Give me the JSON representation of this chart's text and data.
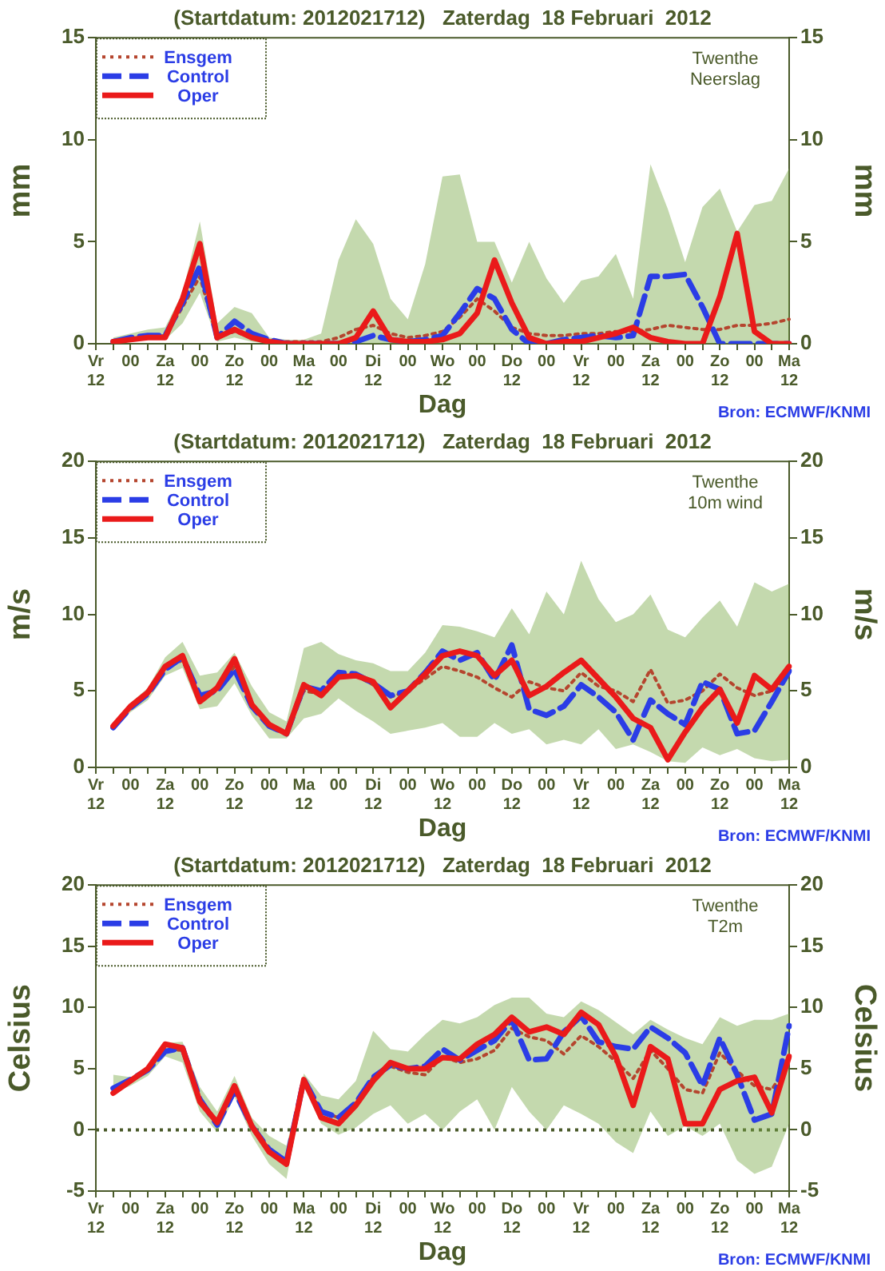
{
  "chart_data": [
    {
      "type": "line",
      "title": "(Startdatum: 2012021712)   Zaterdag  18 Februari  2012",
      "xlabel": "Dag",
      "ylabel": "mm",
      "y2label": "mm",
      "annotations": [
        "Twenthe\nNeerslag",
        "Bron: ECMWF/KNMI"
      ],
      "categories": [
        "Vr\n12",
        null,
        "00",
        null,
        "Za\n12",
        null,
        "00",
        null,
        "Zo\n12",
        null,
        "00",
        null,
        "Ma\n12",
        null,
        "00",
        null,
        "Di\n12",
        null,
        "00",
        null,
        "Wo\n12",
        null,
        "00",
        null,
        "Do\n12",
        null,
        "00",
        null,
        "Vr\n12",
        null,
        "00",
        null,
        "Za\n12",
        null,
        "00",
        null,
        "Zo\n12",
        null,
        "00",
        null,
        "Ma\n12"
      ],
      "ylim": [
        0,
        15
      ],
      "yticks": [
        0,
        5,
        10,
        15
      ],
      "y2lim": [
        0,
        15
      ],
      "y2ticks": [
        0,
        5,
        10,
        15
      ],
      "legend": "top left",
      "series": [
        {
          "name": "Ensgem",
          "color": "#b5452e",
          "line_style": "dotted",
          "values": [
            null,
            0.1,
            0.2,
            0.3,
            0.4,
            1.8,
            3.3,
            0.3,
            0.6,
            0.3,
            0.1,
            0.1,
            0.1,
            0.1,
            0.3,
            0.7,
            0.9,
            0.5,
            0.3,
            0.4,
            0.6,
            1.3,
            2.2,
            1.6,
            0.8,
            0.5,
            0.4,
            0.4,
            0.5,
            0.5,
            0.6,
            0.6,
            0.7,
            0.9,
            0.8,
            0.7,
            0.7,
            0.9,
            0.9,
            1.0,
            1.2
          ],
          "lower": [
            null,
            0.1,
            0.1,
            0.2,
            0.2,
            1.0,
            2.5,
            0.1,
            0.3,
            0.1,
            0,
            0,
            0,
            0,
            0,
            0,
            0,
            0,
            0,
            0,
            0,
            0,
            0,
            0,
            0,
            0,
            0,
            0,
            0,
            0,
            0,
            0,
            0,
            0,
            0,
            0,
            0,
            0,
            0,
            0,
            0
          ],
          "upper": [
            null,
            0.3,
            0.5,
            0.7,
            0.8,
            2.5,
            6.0,
            1.0,
            1.8,
            1.5,
            0.3,
            0.2,
            0.2,
            0.5,
            4.1,
            6.1,
            4.9,
            2.2,
            1.2,
            3.9,
            8.2,
            8.3,
            5.0,
            5.0,
            3.0,
            5.0,
            3.2,
            2.0,
            3.1,
            3.3,
            4.4,
            2.2,
            8.8,
            6.6,
            4.0,
            6.7,
            7.6,
            5.5,
            6.8,
            7.0,
            8.6
          ]
        },
        {
          "name": "Control",
          "color": "#2b3de6",
          "line_style": "dashed",
          "values": [
            null,
            0.1,
            0.3,
            0.4,
            0.4,
            2.0,
            3.8,
            0.3,
            1.1,
            0.5,
            0.2,
            0,
            0,
            0,
            0,
            0.1,
            0.4,
            0.2,
            0.1,
            0.2,
            0.4,
            1.5,
            2.7,
            2.2,
            0.7,
            0,
            0,
            0.2,
            0.3,
            0.4,
            0.3,
            0.4,
            3.3,
            3.3,
            3.4,
            1.8,
            0,
            0,
            0,
            0,
            0
          ]
        },
        {
          "name": "Oper",
          "color": "#ea1a1a",
          "line_style": "solid",
          "values": [
            null,
            0.1,
            0.2,
            0.3,
            0.3,
            2.2,
            4.9,
            0.3,
            0.7,
            0.3,
            0.1,
            0,
            0,
            0,
            0,
            0.3,
            1.6,
            0.2,
            0.1,
            0.1,
            0.2,
            0.5,
            1.5,
            4.1,
            2.0,
            0.3,
            0,
            0.1,
            0.1,
            0.3,
            0.5,
            0.8,
            0.3,
            0.1,
            0,
            0,
            2.3,
            5.4,
            0.6,
            0,
            0
          ]
        }
      ]
    },
    {
      "type": "line",
      "title": "(Startdatum: 2012021712)   Zaterdag  18 Februari  2012",
      "xlabel": "Dag",
      "ylabel": "m/s",
      "y2label": "m/s",
      "annotations": [
        "Twenthe\n10m wind",
        "Bron: ECMWF/KNMI"
      ],
      "categories": [
        "Vr\n12",
        null,
        "00",
        null,
        "Za\n12",
        null,
        "00",
        null,
        "Zo\n12",
        null,
        "00",
        null,
        "Ma\n12",
        null,
        "00",
        null,
        "Di\n12",
        null,
        "00",
        null,
        "Wo\n12",
        null,
        "00",
        null,
        "Do\n12",
        null,
        "00",
        null,
        "Vr\n12",
        null,
        "00",
        null,
        "Za\n12",
        null,
        "00",
        null,
        "Zo\n12",
        null,
        "00",
        null,
        "Ma\n12"
      ],
      "ylim": [
        0,
        20
      ],
      "yticks": [
        0,
        5,
        10,
        15,
        20
      ],
      "y2lim": [
        0,
        20
      ],
      "y2ticks": [
        0,
        5,
        10,
        15,
        20
      ],
      "legend": "top left",
      "series": [
        {
          "name": "Ensgem",
          "color": "#b5452e",
          "line_style": "dotted",
          "values": [
            null,
            2.6,
            3.9,
            4.8,
            6.5,
            7.0,
            4.6,
            5.0,
            6.6,
            4.1,
            2.7,
            2.2,
            5.0,
            4.8,
            6.0,
            6.0,
            5.4,
            4.6,
            5.0,
            5.8,
            6.6,
            6.3,
            5.9,
            5.2,
            4.6,
            5.6,
            5.2,
            5.0,
            6.2,
            5.3,
            5.0,
            4.3,
            6.4,
            4.2,
            4.4,
            5.0,
            6.1,
            5.2,
            4.7,
            5.0,
            6.0
          ],
          "lower": [
            null,
            2.4,
            3.6,
            4.4,
            6.0,
            6.5,
            3.8,
            4.0,
            5.5,
            3.4,
            1.9,
            1.9,
            3.2,
            3.5,
            4.5,
            3.7,
            3.0,
            2.2,
            2.4,
            2.6,
            2.9,
            2.0,
            2.0,
            2.9,
            2.2,
            2.5,
            1.5,
            1.8,
            1.5,
            2.5,
            1.2,
            1.5,
            1.0,
            0.4,
            0.3,
            1.3,
            0.8,
            1.2,
            0.6,
            0.4,
            0.5
          ],
          "upper": [
            null,
            2.9,
            4.2,
            5.2,
            7.2,
            8.2,
            6.0,
            6.2,
            7.5,
            5.3,
            3.6,
            3.0,
            7.8,
            8.2,
            7.4,
            7.0,
            6.8,
            6.3,
            6.3,
            7.5,
            9.3,
            9.2,
            8.9,
            8.5,
            10.4,
            8.7,
            11.5,
            10.0,
            13.5,
            11.0,
            9.5,
            10.0,
            11.3,
            9.0,
            8.5,
            9.8,
            10.9,
            9.2,
            12.1,
            11.5,
            12.0
          ]
        },
        {
          "name": "Control",
          "color": "#2b3de6",
          "line_style": "dashed",
          "values": [
            null,
            2.6,
            3.9,
            4.8,
            6.4,
            7.2,
            4.7,
            5.0,
            6.4,
            4.0,
            2.7,
            2.2,
            5.3,
            5.0,
            6.2,
            6.1,
            5.5,
            4.7,
            5.0,
            6.2,
            7.6,
            7.0,
            7.5,
            5.7,
            8.0,
            3.8,
            3.4,
            4.0,
            5.4,
            4.6,
            3.6,
            1.8,
            4.4,
            3.5,
            2.8,
            5.6,
            5.1,
            2.2,
            2.4,
            4.3,
            6.3
          ]
        },
        {
          "name": "Oper",
          "color": "#ea1a1a",
          "line_style": "solid",
          "values": [
            null,
            2.7,
            4.0,
            4.9,
            6.6,
            7.3,
            4.3,
            5.2,
            7.1,
            4.1,
            2.8,
            2.2,
            5.4,
            4.7,
            5.9,
            6.0,
            5.6,
            3.9,
            5.0,
            6.1,
            7.3,
            7.6,
            7.3,
            6.0,
            7.0,
            4.7,
            5.3,
            6.2,
            7.0,
            5.8,
            4.6,
            3.2,
            2.6,
            0.5,
            2.3,
            3.9,
            5.1,
            2.9,
            6.0,
            5.1,
            6.6
          ]
        }
      ]
    },
    {
      "type": "line",
      "title": "(Startdatum: 2012021712)   Zaterdag  18 Februari  2012",
      "xlabel": "Dag",
      "ylabel": "Celsius",
      "y2label": "Celsius",
      "annotations": [
        "Twenthe\nT2m",
        "Bron: ECMWF/KNMI"
      ],
      "categories": [
        "Vr\n12",
        null,
        "00",
        null,
        "Za\n12",
        null,
        "00",
        null,
        "Zo\n12",
        null,
        "00",
        null,
        "Ma\n12",
        null,
        "00",
        null,
        "Di\n12",
        null,
        "00",
        null,
        "Wo\n12",
        null,
        "00",
        null,
        "Do\n12",
        null,
        "00",
        null,
        "Vr\n12",
        null,
        "00",
        null,
        "Za\n12",
        null,
        "00",
        null,
        "Zo\n12",
        null,
        "00",
        null,
        "Ma\n12"
      ],
      "ylim": [
        -5,
        20
      ],
      "yticks": [
        -5,
        0,
        5,
        10,
        15,
        20
      ],
      "y2lim": [
        -5,
        20
      ],
      "y2ticks": [
        -5,
        0,
        5,
        10,
        15,
        20
      ],
      "legend": "top left",
      "ref_lines": [
        {
          "axis": "y",
          "value": 0,
          "color": "#4a5a2a",
          "line_style": "dotted"
        }
      ],
      "series": [
        {
          "name": "Ensgem",
          "color": "#b5452e",
          "line_style": "dotted",
          "values": [
            null,
            3.2,
            4.0,
            4.9,
            6.6,
            6.5,
            2.5,
            0.5,
            3.4,
            0.3,
            -1.7,
            -2.7,
            4.0,
            1.5,
            1.0,
            2.2,
            4.3,
            5.2,
            4.7,
            4.5,
            6.0,
            5.5,
            5.8,
            6.5,
            8.3,
            7.6,
            7.3,
            6.2,
            7.7,
            6.8,
            5.6,
            4.2,
            6.5,
            5.0,
            3.3,
            3.0,
            6.3,
            4.8,
            3.6,
            3.3,
            5.5
          ],
          "lower": [
            null,
            3.0,
            3.6,
            4.4,
            6.0,
            5.5,
            1.5,
            -0.2,
            2.7,
            -0.5,
            -2.8,
            -4.0,
            3.5,
            0.5,
            -0.4,
            0.2,
            1.3,
            2.0,
            0.5,
            1.3,
            0.0,
            1.5,
            2.5,
            0.0,
            3.5,
            1.5,
            0.0,
            2.0,
            1.3,
            0.5,
            -1.0,
            -1.9,
            1.5,
            -0.5,
            0.3,
            -0.5,
            0.5,
            -2.5,
            -3.6,
            -3.0,
            0.5
          ],
          "upper": [
            null,
            4.5,
            4.3,
            5.2,
            7.1,
            7.2,
            3.5,
            1.5,
            4.4,
            1.0,
            -0.5,
            -1.3,
            4.6,
            2.8,
            2.5,
            4.0,
            8.1,
            6.6,
            6.4,
            7.8,
            9.0,
            8.7,
            9.2,
            10.2,
            10.8,
            10.8,
            9.5,
            9.2,
            10.5,
            9.8,
            8.8,
            7.8,
            9.0,
            8.2,
            7.5,
            7.0,
            9.2,
            8.5,
            9.0,
            9.0,
            9.5
          ]
        },
        {
          "name": "Control",
          "color": "#2b3de6",
          "line_style": "dashed",
          "values": [
            null,
            3.4,
            4.1,
            4.9,
            6.4,
            6.7,
            2.5,
            0.4,
            3.2,
            0.3,
            -1.6,
            -2.6,
            4.1,
            1.5,
            1.0,
            2.2,
            4.3,
            5.3,
            5.0,
            5.2,
            6.6,
            5.7,
            6.5,
            7.3,
            9.0,
            5.7,
            5.8,
            8.0,
            9.3,
            7.2,
            6.8,
            6.6,
            8.4,
            7.5,
            6.3,
            3.6,
            7.5,
            4.5,
            0.8,
            1.3,
            8.5
          ]
        },
        {
          "name": "Oper",
          "color": "#ea1a1a",
          "line_style": "solid",
          "values": [
            null,
            3.0,
            4.0,
            5.0,
            7.0,
            6.7,
            2.3,
            0.6,
            3.6,
            0.3,
            -1.8,
            -2.8,
            4.1,
            1.0,
            0.5,
            2.0,
            4.0,
            5.5,
            5.0,
            5.0,
            5.9,
            5.8,
            7.0,
            7.8,
            9.2,
            8.0,
            8.4,
            7.8,
            9.6,
            8.6,
            6.0,
            2.0,
            6.8,
            5.8,
            0.5,
            0.5,
            3.3,
            4.0,
            4.3,
            1.4,
            6.0
          ]
        }
      ]
    }
  ]
}
